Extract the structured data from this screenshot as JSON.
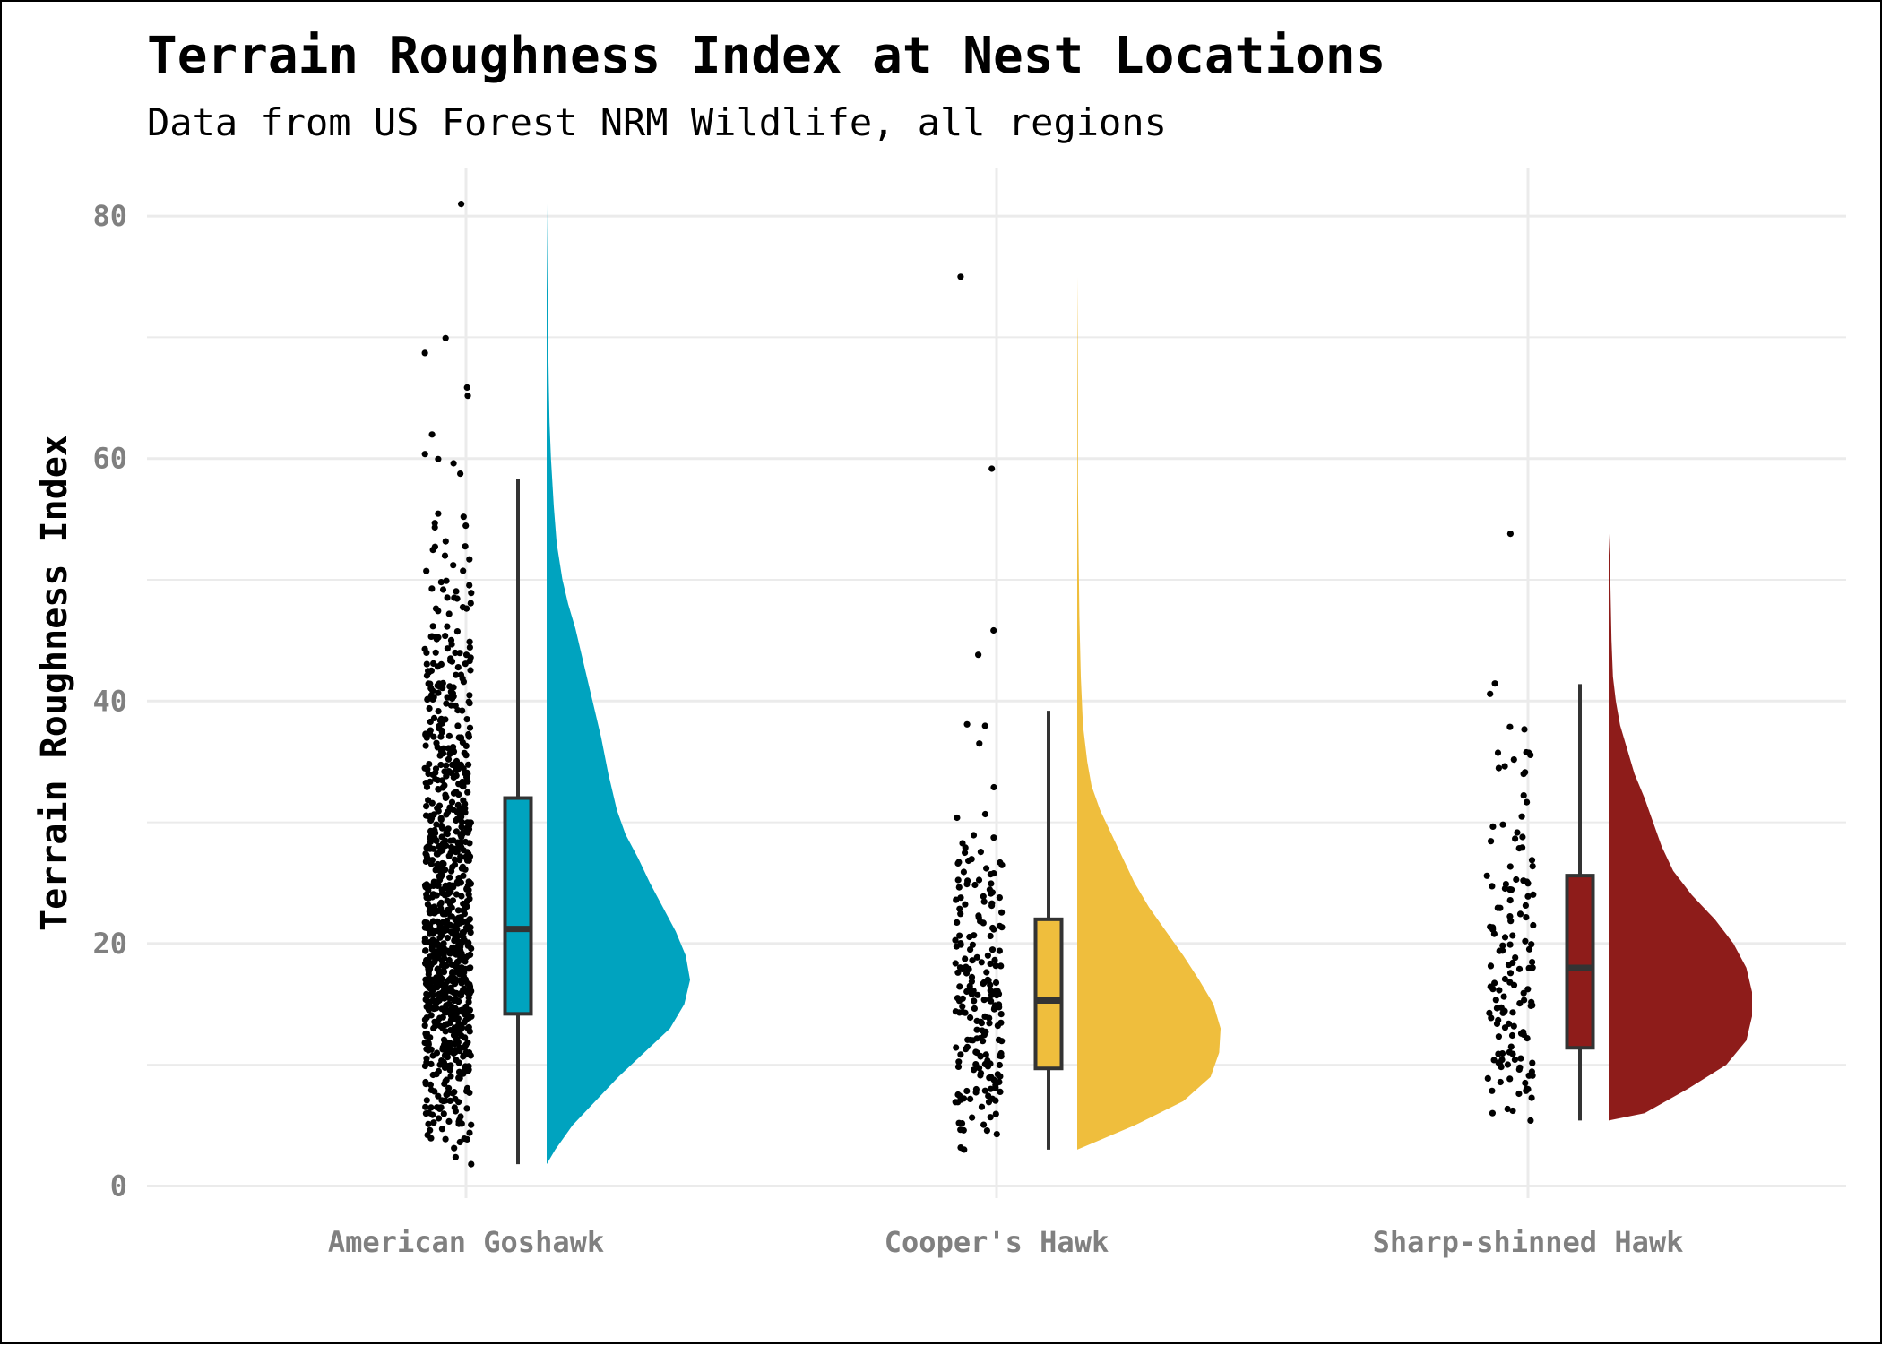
{
  "chart_data": {
    "type": "raincloud",
    "title": "Terrain Roughness Index at Nest Locations",
    "subtitle": "Data from US Forest NRM Wildlife, all regions",
    "xlabel": "",
    "ylabel": "Terrain Roughness Index",
    "ylim": [
      -1,
      84
    ],
    "yticks": [
      0,
      20,
      40,
      60,
      80
    ],
    "grid": true,
    "legend": "none",
    "categories": [
      "American Goshawk",
      "Cooper's Hawk",
      "Sharp-shinned Hawk"
    ],
    "series": [
      {
        "category": "American Goshawk",
        "color": "#00A3BF",
        "n_points": 900,
        "min": 1.8,
        "max": 81,
        "box": {
          "q1": 14.2,
          "median": 21.2,
          "q3": 32,
          "whisker_low": 1.8,
          "whisker_high": 58.3
        },
        "density": [
          [
            1.8,
            0.0
          ],
          [
            3,
            0.06
          ],
          [
            5,
            0.18
          ],
          [
            7,
            0.34
          ],
          [
            9,
            0.5
          ],
          [
            11,
            0.68
          ],
          [
            13,
            0.86
          ],
          [
            15,
            0.96
          ],
          [
            17,
            1.0
          ],
          [
            19,
            0.97
          ],
          [
            21,
            0.9
          ],
          [
            23,
            0.81
          ],
          [
            25,
            0.72
          ],
          [
            27,
            0.64
          ],
          [
            29,
            0.55
          ],
          [
            31,
            0.49
          ],
          [
            34,
            0.43
          ],
          [
            37,
            0.38
          ],
          [
            40,
            0.32
          ],
          [
            43,
            0.26
          ],
          [
            46,
            0.2
          ],
          [
            48,
            0.15
          ],
          [
            50,
            0.11
          ],
          [
            53,
            0.07
          ],
          [
            56,
            0.05
          ],
          [
            60,
            0.03
          ],
          [
            63,
            0.02
          ],
          [
            66,
            0.015
          ],
          [
            70,
            0.01
          ],
          [
            75,
            0.005
          ],
          [
            81,
            0.0
          ]
        ]
      },
      {
        "category": "Cooper's Hawk",
        "color": "#EFBE3D",
        "n_points": 210,
        "min": 3,
        "max": 75,
        "box": {
          "q1": 9.7,
          "median": 15.3,
          "q3": 22,
          "whisker_low": 3,
          "whisker_high": 39.2
        },
        "density": [
          [
            3,
            0.0
          ],
          [
            5,
            0.4
          ],
          [
            7,
            0.74
          ],
          [
            9,
            0.93
          ],
          [
            11,
            0.99
          ],
          [
            13,
            1.0
          ],
          [
            15,
            0.95
          ],
          [
            17,
            0.85
          ],
          [
            19,
            0.74
          ],
          [
            21,
            0.62
          ],
          [
            23,
            0.5
          ],
          [
            25,
            0.4
          ],
          [
            27,
            0.32
          ],
          [
            29,
            0.24
          ],
          [
            31,
            0.16
          ],
          [
            33,
            0.1
          ],
          [
            35,
            0.07
          ],
          [
            38,
            0.04
          ],
          [
            42,
            0.025
          ],
          [
            47,
            0.015
          ],
          [
            52,
            0.01
          ],
          [
            58,
            0.005
          ],
          [
            65,
            0.005
          ],
          [
            70,
            0.003
          ],
          [
            75,
            0.0
          ]
        ]
      },
      {
        "category": "Sharp-shinned Hawk",
        "color": "#8E1C1A",
        "n_points": 140,
        "min": 5.4,
        "max": 53.8,
        "box": {
          "q1": 11.4,
          "median": 18,
          "q3": 25.6,
          "whisker_low": 5.4,
          "whisker_high": 41.4
        },
        "density": [
          [
            5.4,
            0.0
          ],
          [
            6,
            0.25
          ],
          [
            8,
            0.55
          ],
          [
            10,
            0.82
          ],
          [
            12,
            0.96
          ],
          [
            14,
            1.0
          ],
          [
            16,
            1.0
          ],
          [
            18,
            0.96
          ],
          [
            20,
            0.87
          ],
          [
            22,
            0.74
          ],
          [
            24,
            0.58
          ],
          [
            26,
            0.45
          ],
          [
            28,
            0.37
          ],
          [
            30,
            0.31
          ],
          [
            32,
            0.25
          ],
          [
            34,
            0.18
          ],
          [
            36,
            0.13
          ],
          [
            38,
            0.08
          ],
          [
            40,
            0.05
          ],
          [
            42,
            0.03
          ],
          [
            45,
            0.02
          ],
          [
            48,
            0.015
          ],
          [
            51,
            0.01
          ],
          [
            53.8,
            0.0
          ]
        ]
      }
    ]
  }
}
